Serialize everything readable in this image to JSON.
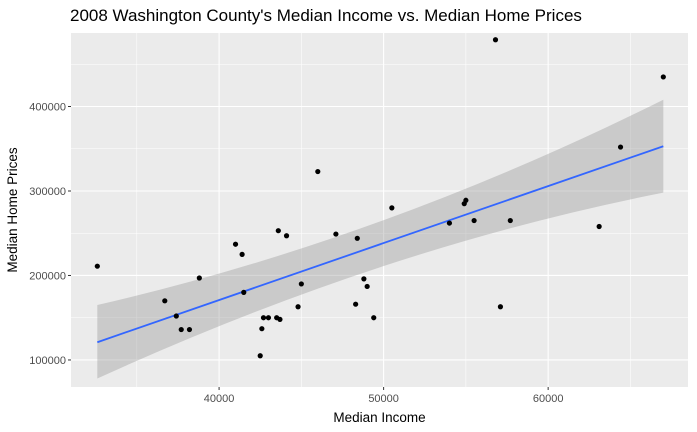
{
  "chart_data": {
    "type": "scatter",
    "title": "2008 Washington County's Median Income vs. Median Home Prices",
    "xlabel": "Median Income",
    "ylabel": "Median Home Prices",
    "xlim": [
      31000,
      68500
    ],
    "ylim": [
      68000,
      487000
    ],
    "x_ticks": [
      40000,
      50000,
      60000
    ],
    "x_tick_labels": [
      "40000",
      "50000",
      "60000"
    ],
    "y_ticks": [
      100000,
      200000,
      300000,
      400000
    ],
    "y_tick_labels": [
      "100000",
      "200000",
      "300000",
      "400000"
    ],
    "grid": true,
    "points": [
      {
        "x": 32600,
        "y": 211000
      },
      {
        "x": 36700,
        "y": 170000
      },
      {
        "x": 37400,
        "y": 152000
      },
      {
        "x": 37700,
        "y": 136000
      },
      {
        "x": 38200,
        "y": 136000
      },
      {
        "x": 38800,
        "y": 197000
      },
      {
        "x": 41000,
        "y": 237000
      },
      {
        "x": 41400,
        "y": 225000
      },
      {
        "x": 41500,
        "y": 180000
      },
      {
        "x": 42500,
        "y": 105000
      },
      {
        "x": 42600,
        "y": 137000
      },
      {
        "x": 42700,
        "y": 150000
      },
      {
        "x": 43000,
        "y": 150000
      },
      {
        "x": 43500,
        "y": 150000
      },
      {
        "x": 43600,
        "y": 253000
      },
      {
        "x": 43700,
        "y": 148000
      },
      {
        "x": 44100,
        "y": 247000
      },
      {
        "x": 44800,
        "y": 163000
      },
      {
        "x": 45000,
        "y": 190000
      },
      {
        "x": 46000,
        "y": 323000
      },
      {
        "x": 47100,
        "y": 249000
      },
      {
        "x": 48300,
        "y": 166000
      },
      {
        "x": 48400,
        "y": 244000
      },
      {
        "x": 48800,
        "y": 196000
      },
      {
        "x": 49000,
        "y": 187000
      },
      {
        "x": 49400,
        "y": 150000
      },
      {
        "x": 50500,
        "y": 280000
      },
      {
        "x": 54000,
        "y": 262000
      },
      {
        "x": 54900,
        "y": 285000
      },
      {
        "x": 55000,
        "y": 289000
      },
      {
        "x": 55500,
        "y": 265000
      },
      {
        "x": 56800,
        "y": 479000
      },
      {
        "x": 57100,
        "y": 163000
      },
      {
        "x": 57700,
        "y": 265000
      },
      {
        "x": 63100,
        "y": 258000
      },
      {
        "x": 64400,
        "y": 352000
      },
      {
        "x": 67000,
        "y": 435000
      }
    ],
    "fit": {
      "type": "linear",
      "line": [
        [
          32600,
          121000
        ],
        [
          67000,
          353000
        ]
      ],
      "band_upper": [
        [
          32600,
          165000
        ],
        [
          50000,
          251000
        ],
        [
          67000,
          408000
        ]
      ],
      "band_lower": [
        [
          32600,
          78000
        ],
        [
          50000,
          225000
        ],
        [
          67000,
          298000
        ]
      ],
      "line_color": "#3366FF",
      "band_color": "#999999"
    },
    "colors": {
      "panel": "#EBEBEB",
      "grid_major": "#FFFFFF",
      "point": "#000000"
    }
  }
}
